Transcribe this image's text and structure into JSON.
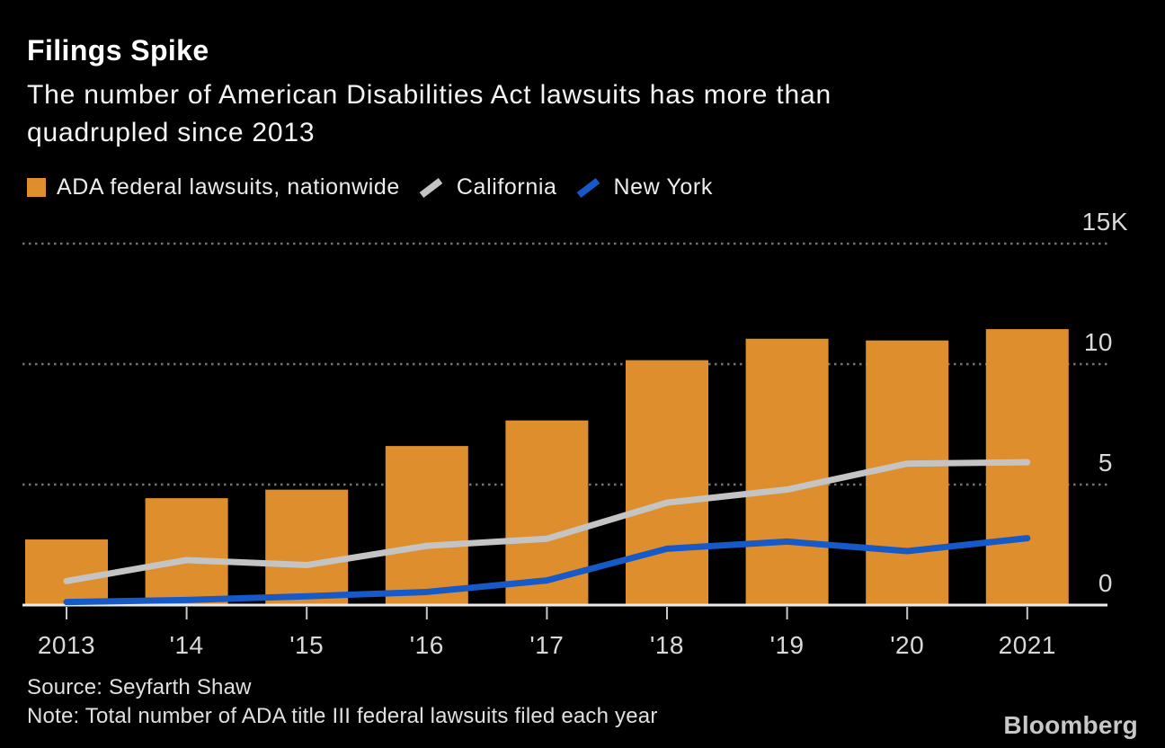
{
  "header": {
    "title": "Filings Spike",
    "subtitle": "The number of American Disabilities Act lawsuits has more than\nquadrupled since 2013"
  },
  "legend": [
    {
      "label": "ADA federal lawsuits, nationwide",
      "swatch": "square",
      "color": "#DE8E2C"
    },
    {
      "label": "California",
      "swatch": "line",
      "color": "#C4C4C4"
    },
    {
      "label": "New York",
      "swatch": "line",
      "color": "#1659C8"
    }
  ],
  "chart_data": {
    "type": "bar",
    "title": "Filings Spike",
    "subtitle": "The number of American Disabilities Act lawsuits has more than quadrupled since 2013",
    "categories": [
      2013,
      2014,
      2015,
      2016,
      2017,
      2018,
      2019,
      2020,
      2021
    ],
    "x_tick_labels": [
      "2013",
      "'14",
      "'15",
      "'16",
      "'17",
      "'18",
      "'19",
      "'20",
      "2021"
    ],
    "series": [
      {
        "name": "ADA federal lawsuits, nationwide",
        "type": "bar",
        "color": "#DE8E2C",
        "values": [
          2722,
          4436,
          4789,
          6601,
          7663,
          10163,
          11053,
          10982,
          11452
        ]
      },
      {
        "name": "California",
        "type": "line",
        "color": "#C4C4C4",
        "values": [
          995,
          1866,
          1659,
          2458,
          2751,
          4249,
          4794,
          5869,
          5930
        ]
      },
      {
        "name": "New York",
        "type": "line",
        "color": "#1659C8",
        "values": [
          125,
          212,
          366,
          543,
          1023,
          2338,
          2635,
          2238,
          2774
        ]
      }
    ],
    "ylim": [
      0,
      15000
    ],
    "y_axis": {
      "side": "right",
      "unit": "K",
      "ticks": [
        {
          "value": 0,
          "label": "0"
        },
        {
          "value": 5000,
          "label": "5"
        },
        {
          "value": 10000,
          "label": "10"
        },
        {
          "value": 15000,
          "label": "15K"
        }
      ]
    },
    "grid": "horizontal-dotted",
    "legend_position": "top-left"
  },
  "palette": {
    "background": "#000000",
    "bar_orange": "#DE8E2C",
    "line_gray": "#C4C4C4",
    "line_blue": "#1659C8",
    "gridline": "#737373",
    "axis_line": "#ECECEC",
    "axis_text": "#D9D9D9"
  },
  "footer": {
    "source": "Source: Seyfarth Shaw",
    "note": "Note: Total number of ADA title III federal lawsuits filed each year",
    "brand": "Bloomberg"
  }
}
